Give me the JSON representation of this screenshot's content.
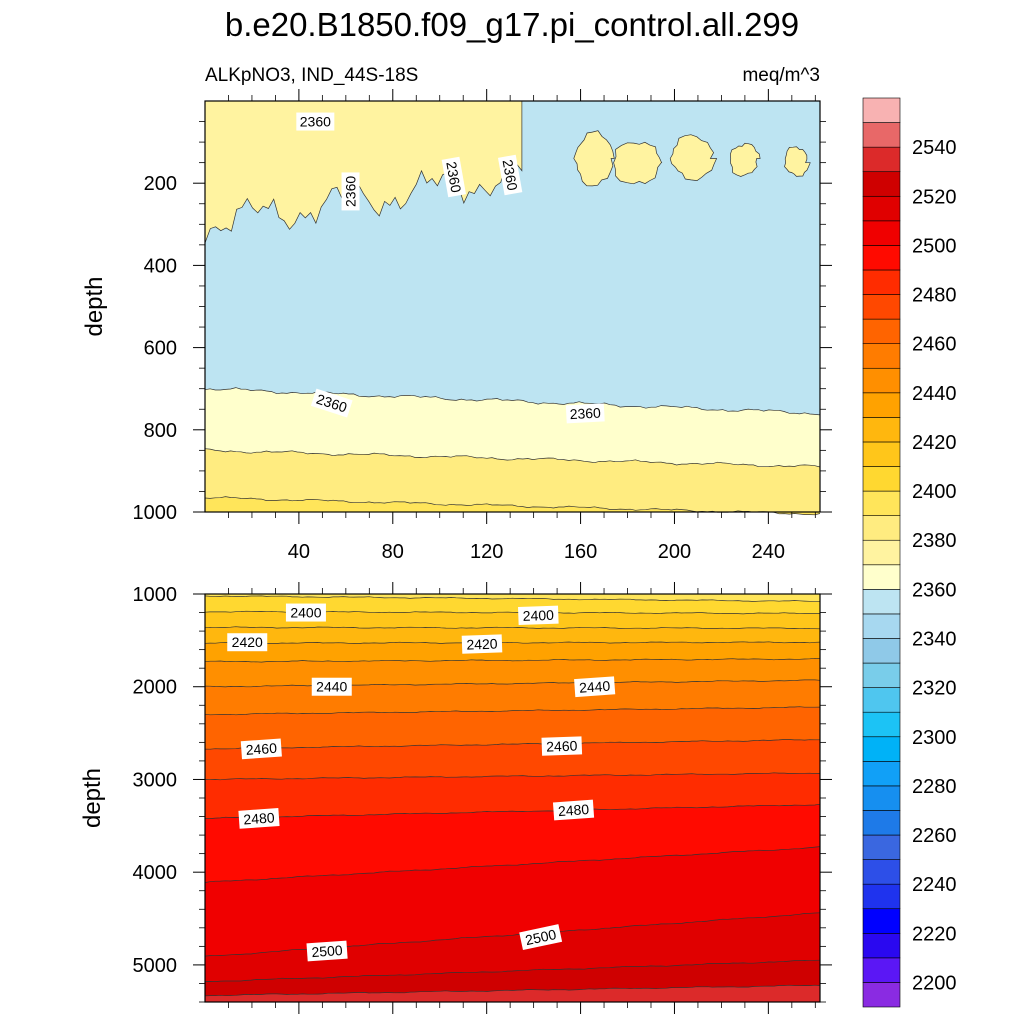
{
  "title": "b.e20.B1850.f09_g17.pi_control.all.299",
  "subtitle_left": "ALKpNO3, IND_44S-18S",
  "subtitle_right": "meq/m^3",
  "colors": {
    "levels": [
      "#8a2be2",
      "#5b17f5",
      "#2a08f0",
      "#0000ff",
      "#1f33ee",
      "#2d4fe8",
      "#3a67e0",
      "#1e7ae8",
      "#168ff0",
      "#11a0f7",
      "#00b2f7",
      "#1cc3f5",
      "#4fc6ef",
      "#79cdea",
      "#8fc9e8",
      "#a7d8f0",
      "#bde4f2",
      "#ffffcc",
      "#fff3a0",
      "#ffec80",
      "#ffe55a",
      "#ffd830",
      "#ffc61a",
      "#ffb70e",
      "#ffa200",
      "#ff8f00",
      "#ff7c00",
      "#ff6400",
      "#ff4800",
      "#ff2c00",
      "#ff0a00",
      "#f00000",
      "#e00000",
      "#cf0000",
      "#dc2a2a",
      "#e86868",
      "#f8b2b2"
    ],
    "contour_line": "#333333"
  },
  "chart_data": [
    {
      "type": "contour",
      "panel": "upper",
      "variable": "ALKpNO3",
      "region": "IND_44S-18S",
      "units": "meq/m^3",
      "ylabel": "depth",
      "x_ticks": [
        40,
        80,
        120,
        160,
        200,
        240
      ],
      "y_ticks": [
        200,
        400,
        600,
        800,
        1000
      ],
      "xlim": [
        0,
        262
      ],
      "ylim": [
        1000,
        0
      ],
      "y_reversed": true,
      "contour_labels": [
        {
          "value": "2360",
          "x": 47,
          "depth": 50,
          "angle": 0
        },
        {
          "value": "2360",
          "x": 62,
          "depth": 220,
          "angle": -90
        },
        {
          "value": "2360",
          "x": 106,
          "depth": 185,
          "angle": 80
        },
        {
          "value": "2360",
          "x": 130,
          "depth": 180,
          "angle": 80
        },
        {
          "value": "2360",
          "x": 54,
          "depth": 735,
          "angle": 18
        },
        {
          "value": "2360",
          "x": 162,
          "depth": 760,
          "angle": -3
        }
      ],
      "regions": [
        {
          "value_range": [
            2340,
            2350
          ],
          "depth_top": 0,
          "depth_bottom": 700
        },
        {
          "value_range": [
            2360,
            2370
          ],
          "depth_top": 0,
          "depth_bottom": 300,
          "note": "patchy near surface"
        },
        {
          "value_range": [
            2350,
            2360
          ],
          "depth_top": 700,
          "depth_bottom": 850
        },
        {
          "value_range": [
            2370,
            2380
          ],
          "depth_top": 850,
          "depth_bottom": 960
        },
        {
          "value_range": [
            2380,
            2390
          ],
          "depth_top": 960,
          "depth_bottom": 1000
        }
      ]
    },
    {
      "type": "contour",
      "panel": "lower",
      "ylabel": "depth",
      "y_ticks": [
        1000,
        2000,
        3000,
        4000,
        5000
      ],
      "xlim": [
        0,
        262
      ],
      "ylim": [
        5400,
        1000
      ],
      "y_reversed": true,
      "contour_labels": [
        {
          "value": "2400",
          "x": 43,
          "depth": 1200,
          "angle": 0
        },
        {
          "value": "2400",
          "x": 142,
          "depth": 1230,
          "angle": -2
        },
        {
          "value": "2420",
          "x": 18,
          "depth": 1520,
          "angle": 0
        },
        {
          "value": "2420",
          "x": 118,
          "depth": 1540,
          "angle": -2
        },
        {
          "value": "2440",
          "x": 54,
          "depth": 2000,
          "angle": 0
        },
        {
          "value": "2440",
          "x": 166,
          "depth": 2000,
          "angle": -4
        },
        {
          "value": "2460",
          "x": 24,
          "depth": 2670,
          "angle": -4
        },
        {
          "value": "2460",
          "x": 152,
          "depth": 2640,
          "angle": -2
        },
        {
          "value": "2480",
          "x": 23,
          "depth": 3420,
          "angle": -4
        },
        {
          "value": "2480",
          "x": 157,
          "depth": 3330,
          "angle": -4
        },
        {
          "value": "2500",
          "x": 52,
          "depth": 4850,
          "angle": -4
        },
        {
          "value": "2500",
          "x": 143,
          "depth": 4700,
          "angle": -12
        }
      ],
      "contour_lines": [
        {
          "value": 2390,
          "depth_left": 1020,
          "depth_right": 1080
        },
        {
          "value": 2400,
          "depth_left": 1190,
          "depth_right": 1210
        },
        {
          "value": 2410,
          "depth_left": 1360,
          "depth_right": 1370
        },
        {
          "value": 2420,
          "depth_left": 1530,
          "depth_right": 1520
        },
        {
          "value": 2430,
          "depth_left": 1730,
          "depth_right": 1700
        },
        {
          "value": 2440,
          "depth_left": 2000,
          "depth_right": 1930
        },
        {
          "value": 2450,
          "depth_left": 2300,
          "depth_right": 2220
        },
        {
          "value": 2460,
          "depth_left": 2670,
          "depth_right": 2570
        },
        {
          "value": 2470,
          "depth_left": 3000,
          "depth_right": 2930
        },
        {
          "value": 2480,
          "depth_left": 3420,
          "depth_right": 3270
        },
        {
          "value": 2490,
          "depth_left": 4110,
          "depth_right": 3730
        },
        {
          "value": 2500,
          "depth_left": 4910,
          "depth_right": 4440
        },
        {
          "value": 2510,
          "depth_left": 5180,
          "depth_right": 4950
        },
        {
          "value": 2520,
          "depth_left": 5330,
          "depth_right": 5220
        }
      ]
    },
    {
      "type": "colorbar",
      "level_min": 2190,
      "level_step": 10,
      "labels": [
        "2200",
        "2220",
        "2240",
        "2260",
        "2280",
        "2300",
        "2320",
        "2340",
        "2360",
        "2380",
        "2400",
        "2420",
        "2440",
        "2460",
        "2480",
        "2500",
        "2520",
        "2540"
      ]
    }
  ]
}
